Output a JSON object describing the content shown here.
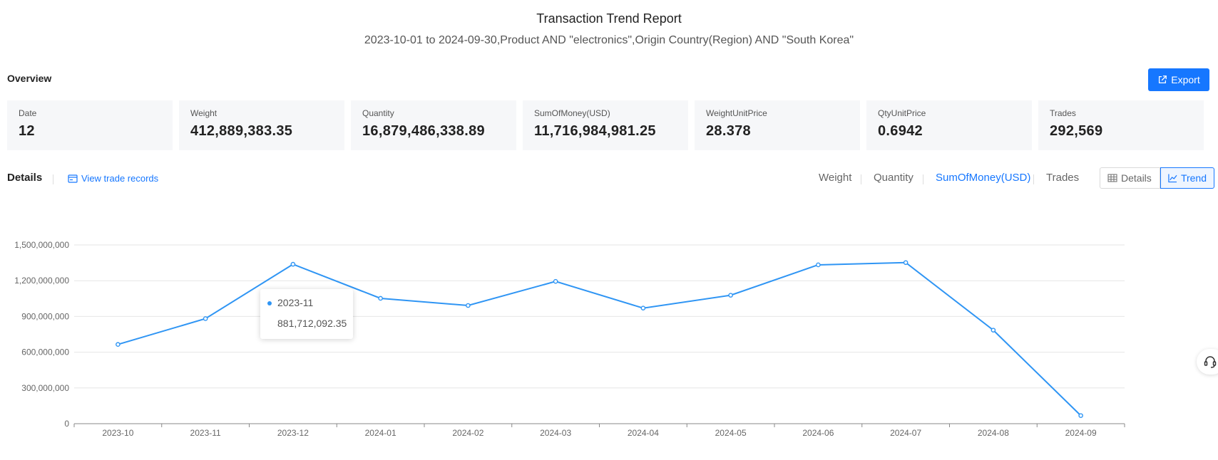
{
  "report": {
    "title": "Transaction Trend Report",
    "subtitle": "2023-10-01 to 2024-09-30,Product AND \"electronics\",Origin Country(Region) AND \"South Korea\""
  },
  "overview": {
    "label": "Overview",
    "export_label": "Export",
    "stats": [
      {
        "label": "Date",
        "value": "12"
      },
      {
        "label": "Weight",
        "value": "412,889,383.35"
      },
      {
        "label": "Quantity",
        "value": "16,879,486,338.89"
      },
      {
        "label": "SumOfMoney(USD)",
        "value": "11,716,984,981.25"
      },
      {
        "label": "WeightUnitPrice",
        "value": "28.378"
      },
      {
        "label": "QtyUnitPrice",
        "value": "0.6942"
      },
      {
        "label": "Trades",
        "value": "292,569"
      }
    ]
  },
  "details": {
    "label": "Details",
    "view_records_label": "View trade records",
    "metric_tabs": [
      "Weight",
      "Quantity",
      "SumOfMoney(USD)",
      "Trades"
    ],
    "active_metric": "SumOfMoney(USD)",
    "view_toggle": {
      "details_label": "Details",
      "trend_label": "Trend",
      "active": "Trend"
    }
  },
  "tooltip": {
    "label": "2023-11",
    "value": "881,712,092.35"
  },
  "colors": {
    "accent": "#1677ff",
    "line": "#2f95f4",
    "grid": "#e6e6e6"
  },
  "icons": {
    "export": "external-link-icon",
    "records": "card-icon",
    "details": "table-icon",
    "trend": "line-chart-icon",
    "support": "headset-icon"
  },
  "chart_data": {
    "type": "line",
    "categories": [
      "2023-10",
      "2023-11",
      "2023-12",
      "2024-01",
      "2024-02",
      "2024-03",
      "2024-04",
      "2024-05",
      "2024-06",
      "2024-07",
      "2024-08",
      "2024-09"
    ],
    "series": [
      {
        "values": [
          665000000,
          881712092.35,
          1338000000,
          1052000000,
          992000000,
          1194000000,
          970000000,
          1078000000,
          1333000000,
          1352000000,
          785000000,
          68000000
        ]
      }
    ],
    "yticks": [
      "0",
      "300,000,000",
      "600,000,000",
      "900,000,000",
      "1,200,000,000",
      "1,500,000,000"
    ],
    "ylim": [
      0,
      1500000000
    ],
    "grid": true,
    "legend": "none"
  }
}
